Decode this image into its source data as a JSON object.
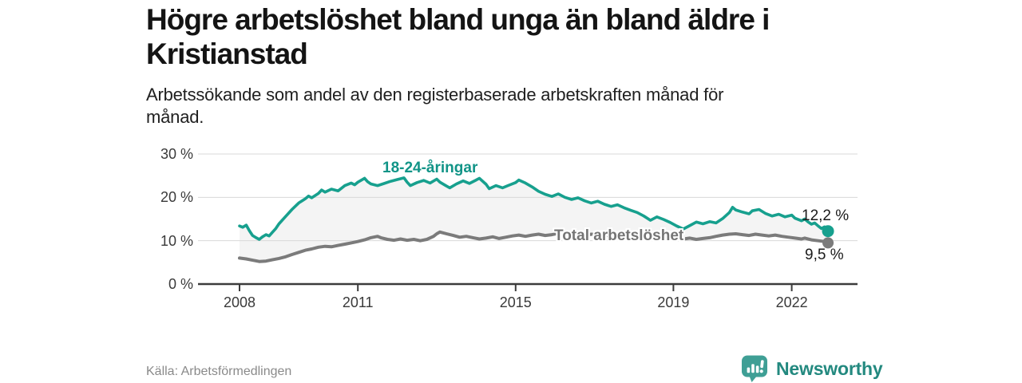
{
  "header": {
    "title_lines": [
      "Högre arbetslöshet bland unga än bland äldre i",
      "Kristianstad"
    ],
    "subtitle_lines": [
      "Arbetssökande som andel av den registerbaserade arbetskraften månad för",
      "månad."
    ]
  },
  "footer": {
    "source": "Källa: Arbetsförmedlingen",
    "logo_text": "Newsworthy"
  },
  "colors": {
    "youth_line": "#17a08e",
    "total_line": "#7b7b7b",
    "fill_between": "#f4f4f4",
    "gridline": "#d8d8d8",
    "axis": "#3c3c3c",
    "logo_teal": "#3f9f95"
  },
  "chart_data": {
    "type": "line",
    "unit": "%",
    "grid": true,
    "x_axis": {
      "ticks": [
        2008,
        2011,
        2015,
        2019,
        2022
      ],
      "tick_labels": [
        "2008",
        "2011",
        "2015",
        "2019",
        "2022"
      ],
      "range": [
        2006.95,
        2023.65
      ]
    },
    "y_axis": {
      "ticks": [
        0,
        10,
        20,
        30
      ],
      "tick_labels": [
        "0 %",
        "10 %",
        "20 %",
        "30 %"
      ],
      "range": [
        0,
        31.5
      ]
    },
    "series": [
      {
        "name": "18-24-åringar",
        "color": "#17a08e",
        "end_label": "12,2 %",
        "end_value": 12.2,
        "points": [
          [
            2008,
            13.4
          ],
          [
            2008.08,
            13.1
          ],
          [
            2008.17,
            13.6
          ],
          [
            2008.25,
            12.3
          ],
          [
            2008.33,
            11.2
          ],
          [
            2008.42,
            10.7
          ],
          [
            2008.5,
            10.3
          ],
          [
            2008.58,
            10.9
          ],
          [
            2008.67,
            11.4
          ],
          [
            2008.75,
            11.1
          ],
          [
            2008.83,
            11.9
          ],
          [
            2008.92,
            12.8
          ],
          [
            2009,
            13.9
          ],
          [
            2009.17,
            15.6
          ],
          [
            2009.33,
            17.2
          ],
          [
            2009.5,
            18.7
          ],
          [
            2009.67,
            19.7
          ],
          [
            2009.75,
            20.3
          ],
          [
            2009.83,
            19.9
          ],
          [
            2010,
            20.9
          ],
          [
            2010.08,
            21.7
          ],
          [
            2010.17,
            21.2
          ],
          [
            2010.33,
            21.9
          ],
          [
            2010.5,
            21.5
          ],
          [
            2010.67,
            22.7
          ],
          [
            2010.83,
            23.3
          ],
          [
            2010.92,
            22.9
          ],
          [
            2011,
            23.5
          ],
          [
            2011.17,
            24.4
          ],
          [
            2011.25,
            23.6
          ],
          [
            2011.33,
            23.1
          ],
          [
            2011.5,
            22.7
          ],
          [
            2011.67,
            23.2
          ],
          [
            2011.83,
            23.7
          ],
          [
            2012,
            24.1
          ],
          [
            2012.17,
            24.5
          ],
          [
            2012.25,
            23.5
          ],
          [
            2012.33,
            22.7
          ],
          [
            2012.5,
            23.4
          ],
          [
            2012.67,
            23.9
          ],
          [
            2012.83,
            23.3
          ],
          [
            2013,
            24.2
          ],
          [
            2013.08,
            23.5
          ],
          [
            2013.25,
            22.6
          ],
          [
            2013.33,
            22.2
          ],
          [
            2013.5,
            23.1
          ],
          [
            2013.67,
            23.8
          ],
          [
            2013.83,
            23.2
          ],
          [
            2014,
            24.0
          ],
          [
            2014.08,
            24.4
          ],
          [
            2014.25,
            23.0
          ],
          [
            2014.33,
            22.0
          ],
          [
            2014.5,
            22.7
          ],
          [
            2014.67,
            22.2
          ],
          [
            2014.83,
            22.8
          ],
          [
            2015,
            23.4
          ],
          [
            2015.08,
            24.0
          ],
          [
            2015.25,
            23.3
          ],
          [
            2015.42,
            22.4
          ],
          [
            2015.58,
            21.4
          ],
          [
            2015.75,
            20.7
          ],
          [
            2015.92,
            20.2
          ],
          [
            2016.08,
            20.8
          ],
          [
            2016.25,
            20.0
          ],
          [
            2016.42,
            19.5
          ],
          [
            2016.58,
            19.9
          ],
          [
            2016.75,
            19.2
          ],
          [
            2016.92,
            18.7
          ],
          [
            2017.08,
            19.1
          ],
          [
            2017.25,
            18.4
          ],
          [
            2017.42,
            17.9
          ],
          [
            2017.58,
            18.3
          ],
          [
            2017.75,
            17.6
          ],
          [
            2017.92,
            17.0
          ],
          [
            2018.08,
            16.5
          ],
          [
            2018.25,
            15.7
          ],
          [
            2018.42,
            14.7
          ],
          [
            2018.58,
            15.5
          ],
          [
            2018.75,
            14.9
          ],
          [
            2018.92,
            14.2
          ],
          [
            2019.08,
            13.4
          ],
          [
            2019.25,
            12.7
          ],
          [
            2019.42,
            13.5
          ],
          [
            2019.58,
            14.3
          ],
          [
            2019.75,
            13.9
          ],
          [
            2019.92,
            14.4
          ],
          [
            2020.08,
            14.1
          ],
          [
            2020.25,
            15.1
          ],
          [
            2020.42,
            16.5
          ],
          [
            2020.5,
            17.7
          ],
          [
            2020.58,
            17.1
          ],
          [
            2020.75,
            16.6
          ],
          [
            2020.92,
            16.2
          ],
          [
            2021,
            16.9
          ],
          [
            2021.17,
            17.2
          ],
          [
            2021.33,
            16.3
          ],
          [
            2021.5,
            15.7
          ],
          [
            2021.67,
            16.1
          ],
          [
            2021.83,
            15.5
          ],
          [
            2022,
            15.9
          ],
          [
            2022.08,
            15.2
          ],
          [
            2022.25,
            14.6
          ],
          [
            2022.33,
            15.0
          ],
          [
            2022.42,
            14.3
          ],
          [
            2022.5,
            13.8
          ],
          [
            2022.58,
            14.1
          ],
          [
            2022.67,
            13.4
          ],
          [
            2022.75,
            12.8
          ],
          [
            2022.83,
            13.2
          ],
          [
            2022.92,
            12.2
          ]
        ]
      },
      {
        "name": "Total arbetslöshet",
        "color": "#7b7b7b",
        "end_label": "9,5 %",
        "end_value": 9.5,
        "points": [
          [
            2008,
            6.0
          ],
          [
            2008.17,
            5.8
          ],
          [
            2008.33,
            5.5
          ],
          [
            2008.5,
            5.2
          ],
          [
            2008.67,
            5.3
          ],
          [
            2008.83,
            5.6
          ],
          [
            2009,
            5.9
          ],
          [
            2009.17,
            6.3
          ],
          [
            2009.33,
            6.8
          ],
          [
            2009.5,
            7.3
          ],
          [
            2009.67,
            7.8
          ],
          [
            2009.83,
            8.1
          ],
          [
            2010,
            8.5
          ],
          [
            2010.17,
            8.7
          ],
          [
            2010.33,
            8.6
          ],
          [
            2010.5,
            8.9
          ],
          [
            2010.67,
            9.2
          ],
          [
            2010.83,
            9.5
          ],
          [
            2011,
            9.8
          ],
          [
            2011.17,
            10.2
          ],
          [
            2011.33,
            10.7
          ],
          [
            2011.5,
            11.0
          ],
          [
            2011.58,
            10.7
          ],
          [
            2011.75,
            10.3
          ],
          [
            2011.92,
            10.1
          ],
          [
            2012.08,
            10.4
          ],
          [
            2012.25,
            10.1
          ],
          [
            2012.42,
            10.3
          ],
          [
            2012.58,
            10.0
          ],
          [
            2012.75,
            10.3
          ],
          [
            2012.92,
            11.0
          ],
          [
            2013,
            11.6
          ],
          [
            2013.08,
            12.0
          ],
          [
            2013.25,
            11.6
          ],
          [
            2013.42,
            11.2
          ],
          [
            2013.58,
            10.8
          ],
          [
            2013.75,
            11.0
          ],
          [
            2013.92,
            10.7
          ],
          [
            2014.08,
            10.4
          ],
          [
            2014.25,
            10.6
          ],
          [
            2014.42,
            10.9
          ],
          [
            2014.58,
            10.5
          ],
          [
            2014.75,
            10.8
          ],
          [
            2014.92,
            11.1
          ],
          [
            2015.08,
            11.3
          ],
          [
            2015.25,
            11.0
          ],
          [
            2015.42,
            11.3
          ],
          [
            2015.58,
            11.5
          ],
          [
            2015.75,
            11.2
          ],
          [
            2015.92,
            11.4
          ],
          [
            2016.08,
            11.7
          ],
          [
            2016.25,
            11.5
          ],
          [
            2016.42,
            11.7
          ],
          [
            2016.58,
            11.4
          ],
          [
            2016.75,
            11.2
          ],
          [
            2016.92,
            11.5
          ],
          [
            2017.08,
            11.3
          ],
          [
            2017.25,
            11.1
          ],
          [
            2017.42,
            11.3
          ],
          [
            2017.58,
            11.0
          ],
          [
            2017.75,
            10.9
          ],
          [
            2017.92,
            11.1
          ],
          [
            2018.08,
            10.9
          ],
          [
            2018.25,
            10.7
          ],
          [
            2018.42,
            10.9
          ],
          [
            2018.58,
            10.6
          ],
          [
            2018.75,
            10.5
          ],
          [
            2018.92,
            10.3
          ],
          [
            2019.08,
            10.2
          ],
          [
            2019.25,
            10.4
          ],
          [
            2019.42,
            10.6
          ],
          [
            2019.58,
            10.3
          ],
          [
            2019.75,
            10.5
          ],
          [
            2019.92,
            10.7
          ],
          [
            2020.08,
            11.0
          ],
          [
            2020.25,
            11.3
          ],
          [
            2020.42,
            11.5
          ],
          [
            2020.58,
            11.6
          ],
          [
            2020.75,
            11.4
          ],
          [
            2020.92,
            11.2
          ],
          [
            2021.08,
            11.5
          ],
          [
            2021.25,
            11.3
          ],
          [
            2021.42,
            11.1
          ],
          [
            2021.58,
            11.3
          ],
          [
            2021.75,
            11.0
          ],
          [
            2021.92,
            10.8
          ],
          [
            2022.08,
            10.6
          ],
          [
            2022.25,
            10.4
          ],
          [
            2022.33,
            10.6
          ],
          [
            2022.5,
            10.2
          ],
          [
            2022.67,
            10.0
          ],
          [
            2022.83,
            9.8
          ],
          [
            2022.92,
            9.5
          ]
        ]
      }
    ]
  }
}
